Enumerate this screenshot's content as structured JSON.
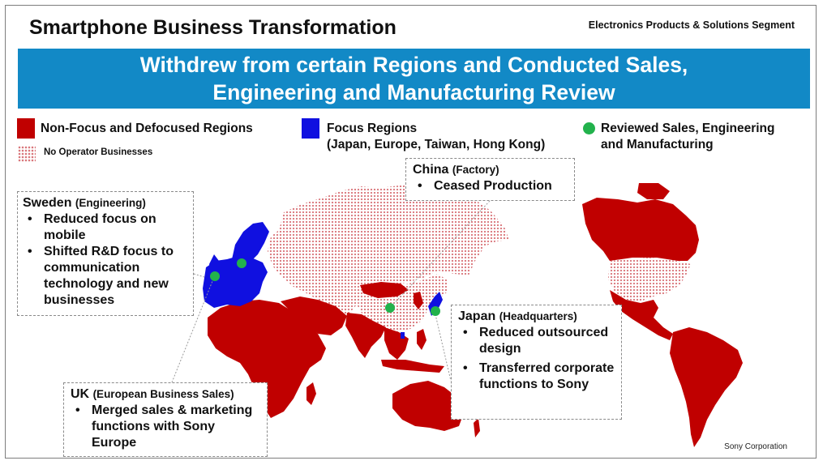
{
  "header": {
    "title": "Smartphone Business Transformation",
    "segment": "Electronics Products & Solutions Segment"
  },
  "banner": {
    "line1": "Withdrew from certain Regions and Conducted Sales,",
    "line2": "Engineering and Manufacturing Review"
  },
  "legend": {
    "non_focus": "Non-Focus and Defocused Regions",
    "focus_line1": "Focus Regions",
    "focus_line2": "(Japan, Europe, Taiwan, Hong Kong)",
    "reviewed_line1": "Reviewed Sales, Engineering",
    "reviewed_line2": "and Manufacturing",
    "no_operator": "No Operator Businesses"
  },
  "colors": {
    "non_focus": "#c00000",
    "focus": "#1010e0",
    "reviewed": "#22b24c",
    "banner": "#1289c6",
    "dots": "#d9777c"
  },
  "callouts": {
    "sweden": {
      "title": "Sweden",
      "sub": "(Engineering)",
      "bullets": [
        "Reduced focus on mobile",
        "Shifted R&D focus to communication technology and new businesses"
      ]
    },
    "china": {
      "title": "China",
      "sub": "(Factory)",
      "bullets": [
        "Ceased Production"
      ]
    },
    "japan": {
      "title": "Japan",
      "sub": "(Headquarters)",
      "bullets": [
        "Reduced outsourced design",
        "Transferred corporate functions to Sony"
      ]
    },
    "uk": {
      "title": "UK",
      "sub": "(European Business Sales)",
      "bullets": [
        "Merged sales & marketing functions with Sony Europe"
      ]
    }
  },
  "footer": "Sony Corporation"
}
